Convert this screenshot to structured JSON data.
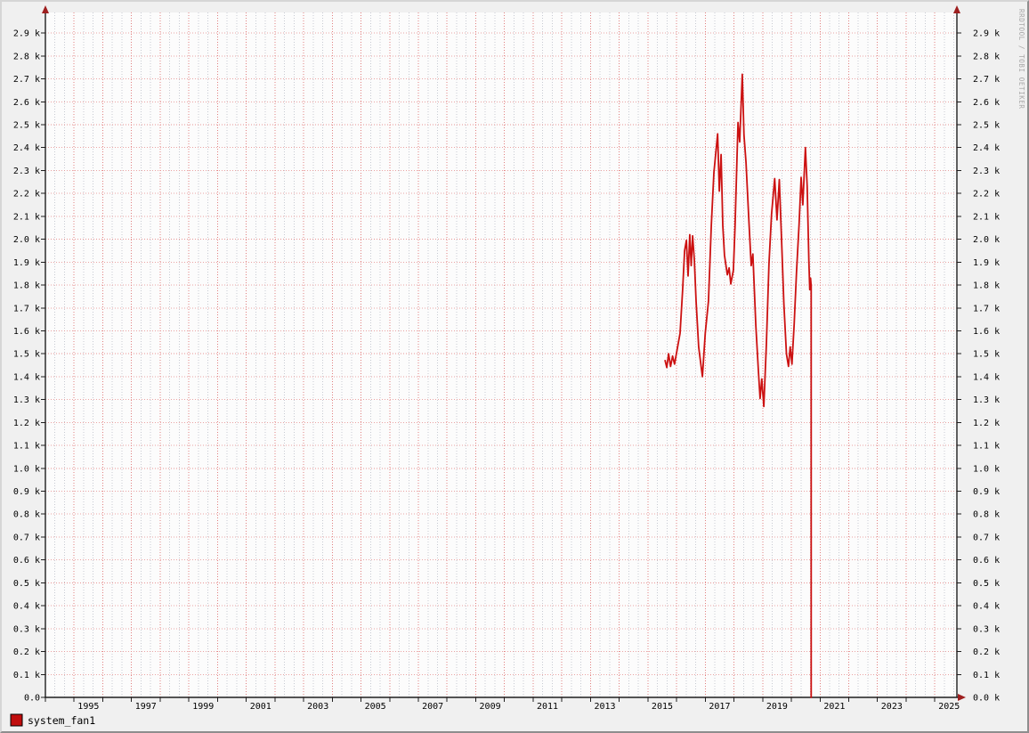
{
  "watermark": "RRDTOOL / TOBI OETIKER",
  "legend": {
    "label": "system_fan1",
    "swatch_color": "#c00d0d",
    "position": "bottom-left"
  },
  "colors": {
    "page_bg": "#f0f0f0",
    "plot_bg": "#fcfcfc",
    "grid_h": "#e89494",
    "grid_v_major": "#e07f7f",
    "grid_v_minor": "#c7cad2",
    "axis": "#1f1f1f",
    "arrow": "#9e1f1f",
    "series": "#cc1111",
    "watermark": "#a8a8a8",
    "tick": "#1f1f1f"
  },
  "chart_data": {
    "type": "line",
    "title": "",
    "xlabel": "",
    "ylabel": "",
    "grid": "on",
    "legend_position": "bottom-left",
    "x_domain": [
      1994.0,
      2025.77
    ],
    "y_domain": [
      0,
      2990
    ],
    "x_tick_years": [
      1995,
      1997,
      1999,
      2001,
      2003,
      2005,
      2007,
      2009,
      2011,
      2013,
      2015,
      2017,
      2019,
      2021,
      2023,
      2025
    ],
    "y_ticks": [
      0,
      100,
      200,
      300,
      400,
      500,
      600,
      700,
      800,
      900,
      1000,
      1100,
      1200,
      1300,
      1400,
      1500,
      1600,
      1700,
      1800,
      1900,
      2000,
      2100,
      2200,
      2300,
      2400,
      2500,
      2600,
      2700,
      2800,
      2900
    ],
    "y_tick_labels_left": [
      "0.0",
      "0.1 k",
      "0.2 k",
      "0.3 k",
      "0.4 k",
      "0.5 k",
      "0.6 k",
      "0.7 k",
      "0.8 k",
      "0.9 k",
      "1.0 k",
      "1.1 k",
      "1.2 k",
      "1.3 k",
      "1.4 k",
      "1.5 k",
      "1.6 k",
      "1.7 k",
      "1.8 k",
      "1.9 k",
      "2.0 k",
      "2.1 k",
      "2.2 k",
      "2.3 k",
      "2.4 k",
      "2.5 k",
      "2.6 k",
      "2.7 k",
      "2.8 k",
      "2.9 k"
    ],
    "y_tick_labels_right": [
      "0.0 k",
      "0.1 k",
      "0.2 k",
      "0.3 k",
      "0.4 k",
      "0.5 k",
      "0.6 k",
      "0.7 k",
      "0.8 k",
      "0.9 k",
      "1.0 k",
      "1.1 k",
      "1.2 k",
      "1.3 k",
      "1.4 k",
      "1.5 k",
      "1.6 k",
      "1.7 k",
      "1.8 k",
      "1.9 k",
      "2.0 k",
      "2.1 k",
      "2.2 k",
      "2.3 k",
      "2.4 k",
      "2.5 k",
      "2.6 k",
      "2.7 k",
      "2.8 k",
      "2.9 k"
    ],
    "series": [
      {
        "name": "system_fan1",
        "color": "#cc1111",
        "points": [
          [
            2015.6,
            1470
          ],
          [
            2015.66,
            1440
          ],
          [
            2015.72,
            1500
          ],
          [
            2015.79,
            1445
          ],
          [
            2015.86,
            1490
          ],
          [
            2015.93,
            1455
          ],
          [
            2016.12,
            1590
          ],
          [
            2016.21,
            1780
          ],
          [
            2016.28,
            1950
          ],
          [
            2016.34,
            1995
          ],
          [
            2016.4,
            1840
          ],
          [
            2016.46,
            2020
          ],
          [
            2016.51,
            1885
          ],
          [
            2016.56,
            2015
          ],
          [
            2016.62,
            1905
          ],
          [
            2016.68,
            1730
          ],
          [
            2016.77,
            1530
          ],
          [
            2016.9,
            1400
          ],
          [
            2017.0,
            1590
          ],
          [
            2017.11,
            1730
          ],
          [
            2017.21,
            2060
          ],
          [
            2017.3,
            2290
          ],
          [
            2017.43,
            2460
          ],
          [
            2017.49,
            2210
          ],
          [
            2017.55,
            2370
          ],
          [
            2017.61,
            2060
          ],
          [
            2017.67,
            1930
          ],
          [
            2017.77,
            1845
          ],
          [
            2017.83,
            1875
          ],
          [
            2017.89,
            1805
          ],
          [
            2017.98,
            1865
          ],
          [
            2018.04,
            2060
          ],
          [
            2018.14,
            2510
          ],
          [
            2018.2,
            2425
          ],
          [
            2018.29,
            2720
          ],
          [
            2018.35,
            2455
          ],
          [
            2018.42,
            2335
          ],
          [
            2018.51,
            2105
          ],
          [
            2018.6,
            1885
          ],
          [
            2018.66,
            1935
          ],
          [
            2018.76,
            1625
          ],
          [
            2018.85,
            1425
          ],
          [
            2018.91,
            1305
          ],
          [
            2018.97,
            1390
          ],
          [
            2019.04,
            1270
          ],
          [
            2019.13,
            1545
          ],
          [
            2019.22,
            1895
          ],
          [
            2019.31,
            2110
          ],
          [
            2019.42,
            2265
          ],
          [
            2019.5,
            2085
          ],
          [
            2019.58,
            2260
          ],
          [
            2019.66,
            1990
          ],
          [
            2019.74,
            1720
          ],
          [
            2019.83,
            1500
          ],
          [
            2019.9,
            1445
          ],
          [
            2019.96,
            1530
          ],
          [
            2020.02,
            1455
          ],
          [
            2020.1,
            1630
          ],
          [
            2020.18,
            1855
          ],
          [
            2020.27,
            2065
          ],
          [
            2020.34,
            2270
          ],
          [
            2020.4,
            2150
          ],
          [
            2020.49,
            2400
          ],
          [
            2020.55,
            2230
          ],
          [
            2020.61,
            1905
          ],
          [
            2020.64,
            1780
          ],
          [
            2020.67,
            1830
          ],
          [
            2020.69,
            1795
          ],
          [
            2020.69,
            0
          ]
        ]
      }
    ]
  }
}
